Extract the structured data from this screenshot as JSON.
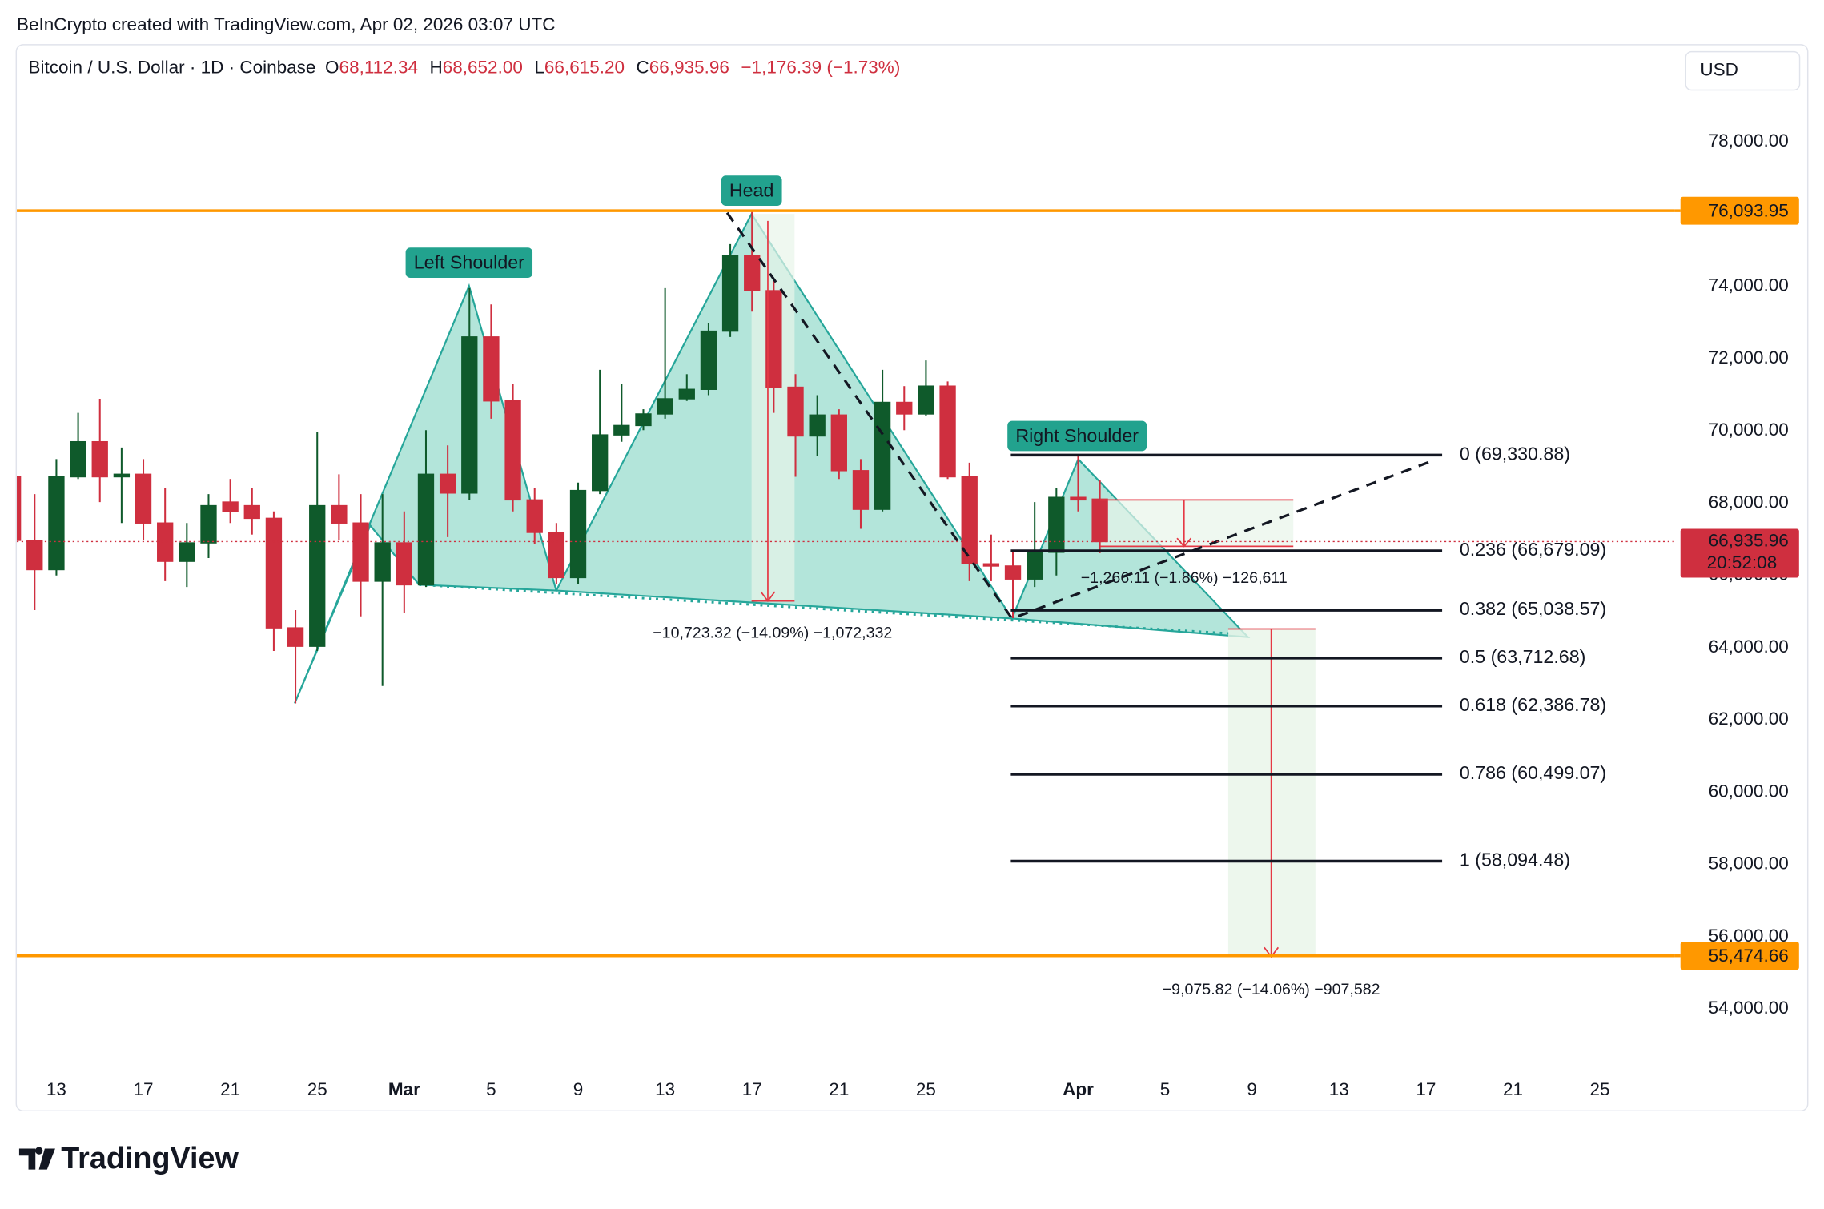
{
  "header": {
    "attribution": "BeInCrypto created with TradingView.com, Apr 02, 2026 03:07 UTC",
    "logo": "TradingView"
  },
  "chart_data": {
    "type": "candlestick",
    "title": "Bitcoin / U.S. Dollar · 1D · Coinbase",
    "ohlc_legend": [
      {
        "key": "O",
        "value": "68,112.34"
      },
      {
        "key": "H",
        "value": "68,652.00"
      },
      {
        "key": "L",
        "value": "66,615.20"
      },
      {
        "key": "C",
        "value": "66,935.96"
      }
    ],
    "change": "−1,176.39 (−1.73%)",
    "currency": "USD",
    "open": [
      68730,
      66970,
      66160,
      68730,
      69700,
      68730,
      68800,
      67450,
      66390,
      66900,
      68030,
      67930,
      67580,
      64550,
      64040,
      67930,
      67450,
      65840,
      66900,
      65740,
      68800,
      68280,
      72600,
      70830,
      68090,
      67190,
      65940,
      68350,
      69890,
      70150,
      70470,
      70890,
      71150,
      72760,
      74850,
      73880,
      71210,
      69860,
      70440,
      68900,
      67830,
      70790,
      70470,
      71240,
      68730,
      66320,
      66260,
      65900,
      66640,
      68160,
      68112.34
    ],
    "high": [
      68900,
      68250,
      69220,
      70500,
      70890,
      69540,
      69220,
      68410,
      67450,
      68250,
      68670,
      68410,
      67770,
      65040,
      69960,
      68800,
      68250,
      68250,
      67770,
      70020,
      69600,
      73950,
      73500,
      71310,
      68410,
      67450,
      68570,
      71690,
      71310,
      70600,
      73950,
      71570,
      72980,
      75170,
      76090,
      74200,
      71570,
      70990,
      70600,
      69220,
      71690,
      71240,
      71950,
      71370,
      69120,
      67130,
      66640,
      68030,
      68410,
      69330,
      68652
    ],
    "low": [
      66800,
      65040,
      66000,
      68670,
      68030,
      67450,
      66970,
      65840,
      65680,
      66480,
      67450,
      67130,
      63910,
      62460,
      63910,
      66970,
      64870,
      62940,
      64970,
      65680,
      67060,
      68090,
      70340,
      67770,
      66870,
      65770,
      65770,
      68250,
      69700,
      70020,
      70340,
      70830,
      70990,
      72600,
      73300,
      70500,
      68730,
      69310,
      68670,
      67290,
      67770,
      70020,
      70410,
      68670,
      65840,
      65840,
      64820,
      65680,
      66000,
      67770,
      66615.2
    ],
    "close": [
      66970,
      66160,
      68730,
      69700,
      68730,
      68800,
      67450,
      66390,
      66900,
      67930,
      67770,
      67580,
      64550,
      64040,
      67930,
      67450,
      65840,
      66900,
      65740,
      68800,
      68280,
      72600,
      70830,
      68090,
      67190,
      65940,
      68350,
      69890,
      70150,
      70470,
      70890,
      71150,
      72760,
      74850,
      73880,
      71210,
      69860,
      70440,
      68900,
      67830,
      70790,
      70470,
      71240,
      68730,
      66320,
      66260,
      65900,
      66640,
      68160,
      68090,
      66935.96
    ],
    "up_color": "#0f5a2b",
    "down_color": "#cf2f3f",
    "xlim": [
      0.18,
      76.44
    ],
    "xticks": [
      {
        "value": 2,
        "label": "13"
      },
      {
        "value": 6,
        "label": "17"
      },
      {
        "value": 10,
        "label": "21"
      },
      {
        "value": 14,
        "label": "25"
      },
      {
        "value": 18,
        "label": "Mar"
      },
      {
        "value": 22,
        "label": "5"
      },
      {
        "value": 26,
        "label": "9"
      },
      {
        "value": 30,
        "label": "13"
      },
      {
        "value": 34,
        "label": "17"
      },
      {
        "value": 38,
        "label": "21"
      },
      {
        "value": 42,
        "label": "25"
      },
      {
        "value": 49,
        "label": "Apr"
      },
      {
        "value": 53,
        "label": "5"
      },
      {
        "value": 57,
        "label": "9"
      },
      {
        "value": 61,
        "label": "13"
      },
      {
        "value": 65,
        "label": "17"
      },
      {
        "value": 69,
        "label": "21"
      },
      {
        "value": 73,
        "label": "25"
      }
    ],
    "ylim": [
      52327,
      80702
    ],
    "yticks": [
      {
        "value": 54000,
        "label": "54,000.00"
      },
      {
        "value": 56000,
        "label": "56,000.00"
      },
      {
        "value": 58000,
        "label": "58,000.00"
      },
      {
        "value": 60000,
        "label": "60,000.00"
      },
      {
        "value": 62000,
        "label": "62,000.00"
      },
      {
        "value": 64000,
        "label": "64,000.00"
      },
      {
        "value": 66000,
        "label": "66,000.00"
      },
      {
        "value": 68000,
        "label": "68,000.00"
      },
      {
        "value": 70000,
        "label": "70,000.00"
      },
      {
        "value": 72000,
        "label": "72,000.00"
      },
      {
        "value": 74000,
        "label": "74,000.00"
      },
      {
        "value": 76000,
        "label": "76,000.00"
      },
      {
        "value": 78000,
        "label": "78,000.00"
      }
    ],
    "levels": [
      {
        "value": 76093.95,
        "label": "76,093.95",
        "color": "#ff9800"
      },
      {
        "value": 55474.66,
        "label": "55,474.66",
        "color": "#ff9800"
      }
    ],
    "last_price": {
      "value": 66935.96,
      "label": "66,935.96",
      "countdown": "20:52:08",
      "color": "#cf2f3f"
    },
    "fibonacci": [
      {
        "value": 69330.88,
        "label": "0 (69,330.88)"
      },
      {
        "value": 66679.09,
        "label": "0.236 (66,679.09)"
      },
      {
        "value": 65038.57,
        "label": "0.382 (65,038.57)"
      },
      {
        "value": 63712.68,
        "label": "0.5 (63,712.68)"
      },
      {
        "value": 62386.78,
        "label": "0.618 (62,386.78)"
      },
      {
        "value": 60499.07,
        "label": "0.786 (60,499.07)"
      },
      {
        "value": 58094.48,
        "label": "1 (58,094.48)"
      }
    ],
    "annotations": [
      "Left Shoulder",
      "Head",
      "Right Shoulder"
    ],
    "measurements": [
      "−10,723.32 (−14.09%) −1,072,332",
      "−1,266.11 (−1.86%) −126,611",
      "−9,075.82 (−14.06%) −907,582"
    ]
  }
}
